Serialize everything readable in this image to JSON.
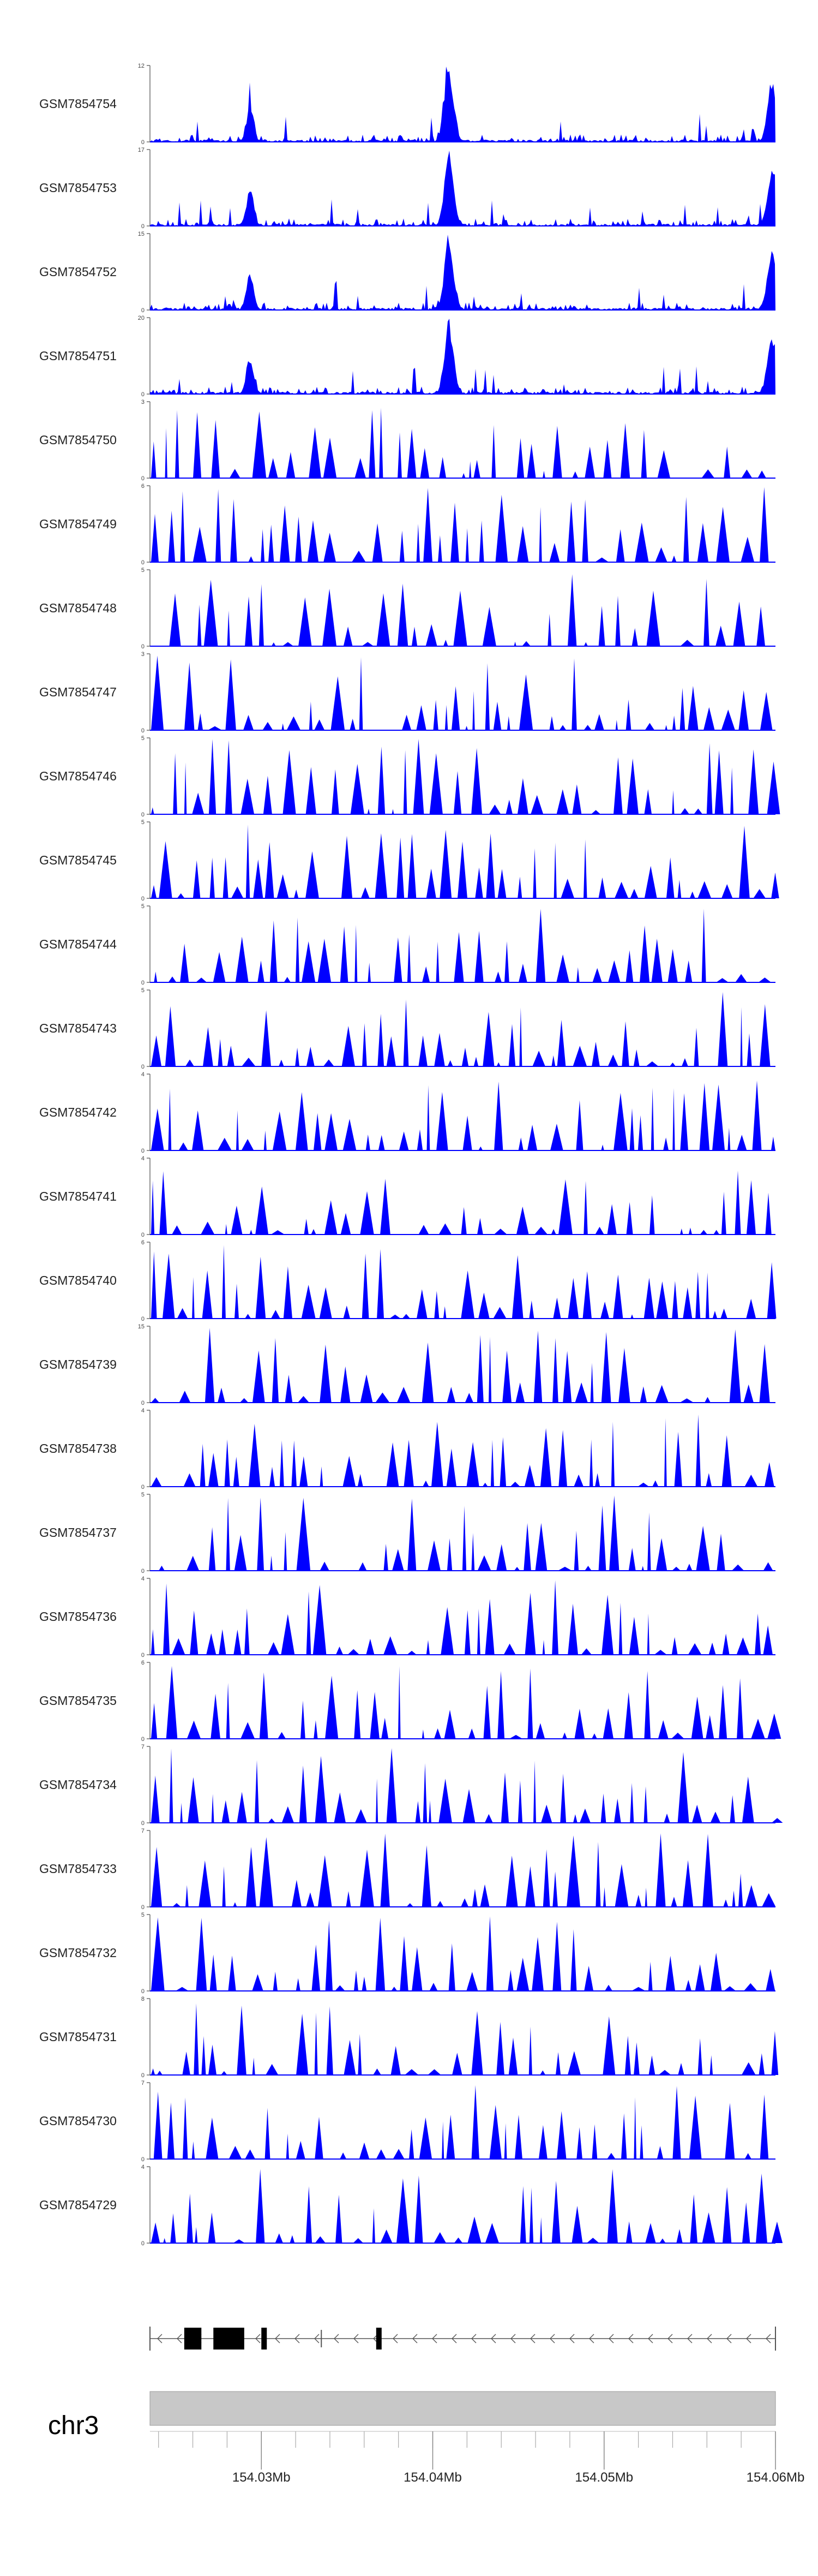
{
  "figure": {
    "chromosome": "chr3",
    "signal_color": "#0000ff",
    "ideogram_color": "#c8c8c8",
    "gene_color": "#000000"
  },
  "chart_data": {
    "type": "area",
    "x_range_mb": [
      154.0235,
      154.06
    ],
    "tracks": [
      {
        "name": "GSM7854754",
        "ymax": "12",
        "profile": "peaked"
      },
      {
        "name": "GSM7854753",
        "ymax": "17",
        "profile": "peaked"
      },
      {
        "name": "GSM7854752",
        "ymax": "15",
        "profile": "peaked"
      },
      {
        "name": "GSM7854751",
        "ymax": "20",
        "profile": "peaked"
      },
      {
        "name": "GSM7854750",
        "ymax": "3",
        "profile": "sparse"
      },
      {
        "name": "GSM7854749",
        "ymax": "6",
        "profile": "sparse"
      },
      {
        "name": "GSM7854748",
        "ymax": "5",
        "profile": "sparse"
      },
      {
        "name": "GSM7854747",
        "ymax": "3",
        "profile": "sparse"
      },
      {
        "name": "GSM7854746",
        "ymax": "5",
        "profile": "sparse"
      },
      {
        "name": "GSM7854745",
        "ymax": "5",
        "profile": "sparse"
      },
      {
        "name": "GSM7854744",
        "ymax": "5",
        "profile": "sparse"
      },
      {
        "name": "GSM7854743",
        "ymax": "5",
        "profile": "sparse"
      },
      {
        "name": "GSM7854742",
        "ymax": "4",
        "profile": "sparse"
      },
      {
        "name": "GSM7854741",
        "ymax": "4",
        "profile": "sparse"
      },
      {
        "name": "GSM7854740",
        "ymax": "6",
        "profile": "sparse"
      },
      {
        "name": "GSM7854739",
        "ymax": "15",
        "profile": "sparse"
      },
      {
        "name": "GSM7854738",
        "ymax": "4",
        "profile": "sparse"
      },
      {
        "name": "GSM7854737",
        "ymax": "5",
        "profile": "sparse"
      },
      {
        "name": "GSM7854736",
        "ymax": "4",
        "profile": "sparse"
      },
      {
        "name": "GSM7854735",
        "ymax": "6",
        "profile": "sparse"
      },
      {
        "name": "GSM7854734",
        "ymax": "7",
        "profile": "sparse"
      },
      {
        "name": "GSM7854733",
        "ymax": "7",
        "profile": "sparse"
      },
      {
        "name": "GSM7854732",
        "ymax": "5",
        "profile": "sparse"
      },
      {
        "name": "GSM7854731",
        "ymax": "8",
        "profile": "sparse"
      },
      {
        "name": "GSM7854730",
        "ymax": "7",
        "profile": "sparse"
      },
      {
        "name": "GSM7854729",
        "ymax": "4",
        "profile": "sparse"
      }
    ],
    "gene_model": {
      "strand": "-",
      "start_mb": 154.0235,
      "end_mb": 154.06,
      "exons_mb": [
        [
          154.0255,
          154.0265
        ],
        [
          154.0272,
          154.029
        ],
        [
          154.03,
          154.0303
        ],
        [
          154.0367,
          154.037
        ]
      ],
      "extra_intron_ticks_mb": [
        154.0335
      ]
    },
    "axis": {
      "ticks": [
        {
          "mb": 154.03,
          "label": "154.03Mb"
        },
        {
          "mb": 154.04,
          "label": "154.04Mb"
        },
        {
          "mb": 154.05,
          "label": "154.05Mb"
        },
        {
          "mb": 154.06,
          "label": "154.06Mb"
        }
      ],
      "minor_every_mb": 0.002
    },
    "ymin_label": "0"
  }
}
